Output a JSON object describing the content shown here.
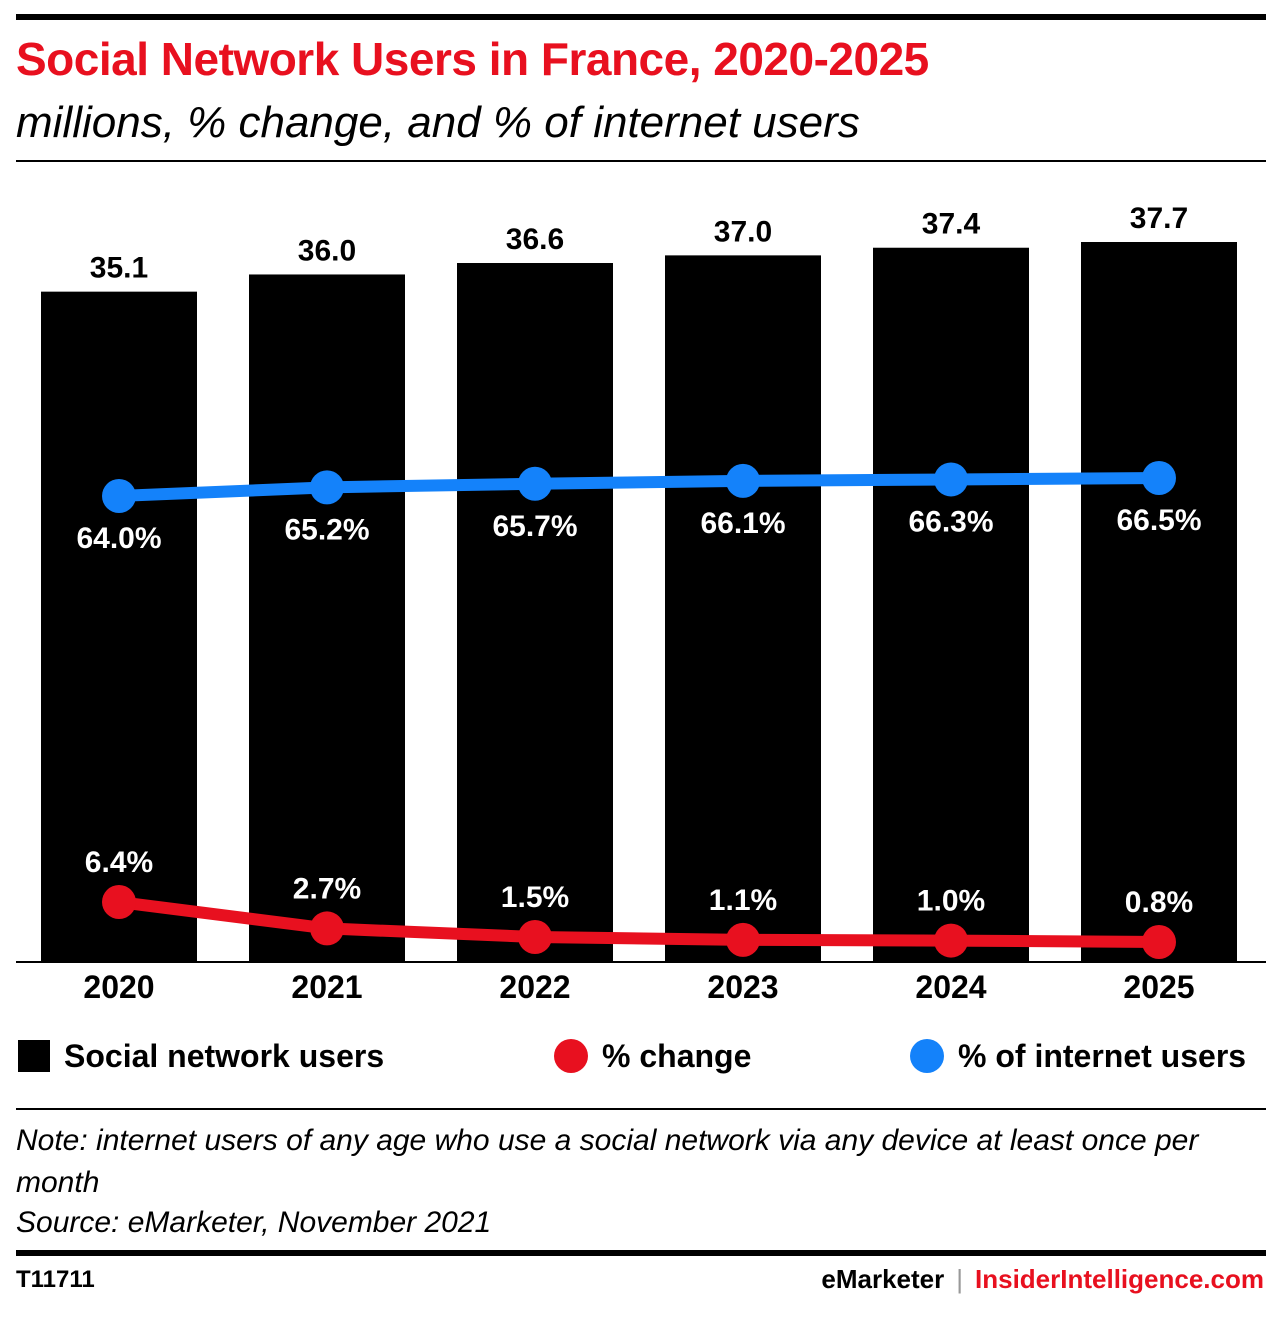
{
  "header": {
    "title": "Social Network Users in France, 2020-2025",
    "subtitle": "millions, % change, and % of internet users"
  },
  "chart_data": {
    "type": "bar",
    "categories": [
      "2020",
      "2021",
      "2022",
      "2023",
      "2024",
      "2025"
    ],
    "series": [
      {
        "name": "Social network users",
        "type": "bar",
        "values": [
          35.1,
          36.0,
          36.6,
          37.0,
          37.4,
          37.7
        ],
        "labels": [
          "35.1",
          "36.0",
          "36.6",
          "37.0",
          "37.4",
          "37.7"
        ]
      },
      {
        "name": "% change",
        "type": "line",
        "values": [
          6.4,
          2.7,
          1.5,
          1.1,
          1.0,
          0.8
        ],
        "labels": [
          "6.4%",
          "2.7%",
          "1.5%",
          "1.1%",
          "1.0%",
          "0.8%"
        ]
      },
      {
        "name": "% of internet users",
        "type": "line",
        "values": [
          64.0,
          65.2,
          65.7,
          66.1,
          66.3,
          66.5
        ],
        "labels": [
          "64.0%",
          "65.2%",
          "65.7%",
          "66.1%",
          "66.3%",
          "66.5%"
        ]
      }
    ],
    "ylim": [
      0,
      37.7
    ],
    "legend_position": "bottom",
    "grid": false
  },
  "legend": {
    "items": [
      "Social network users",
      "% change",
      "% of internet users"
    ]
  },
  "colors": {
    "bar": "#000000",
    "change": "#e8101f",
    "internet": "#1482fa",
    "brand_red": "#e8101f"
  },
  "footer": {
    "note": "Note: internet users of any age who use a social network via any device at least once per month",
    "source": "Source: eMarketer, November 2021",
    "chart_id": "T11711",
    "brand_left": "eMarketer",
    "separator": "|",
    "brand_right": "InsiderIntelligence.com"
  }
}
